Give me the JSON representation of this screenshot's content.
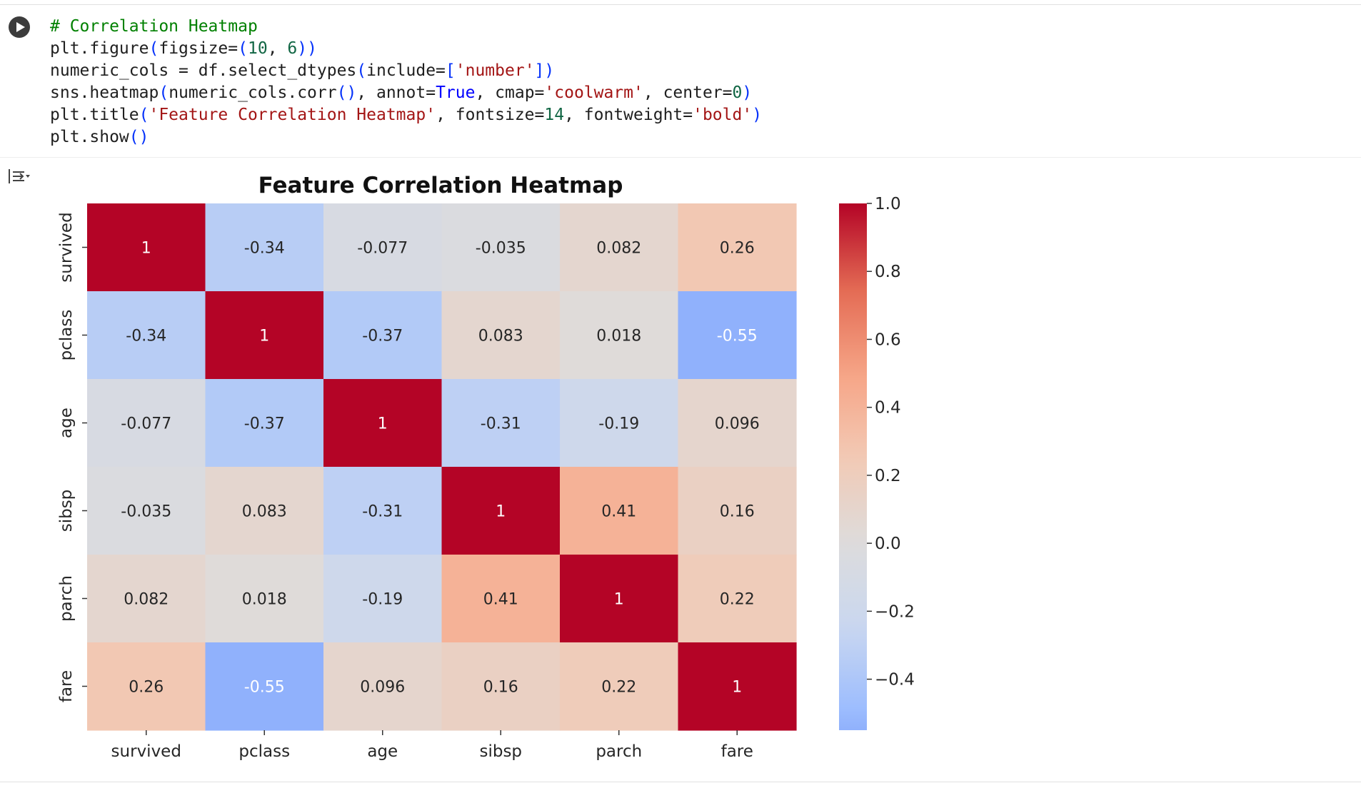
{
  "notebook": {
    "run_button_icon": "play-icon",
    "output_toggle_icon": "collapse-output-icon"
  },
  "code_cell": {
    "lines": [
      [
        {
          "t": "# Correlation Heatmap",
          "k": "comment"
        }
      ],
      [
        {
          "t": "plt.figure",
          "k": "plain"
        },
        {
          "t": "(",
          "k": "paren"
        },
        {
          "t": "figsize=",
          "k": "plain"
        },
        {
          "t": "(",
          "k": "paren"
        },
        {
          "t": "10",
          "k": "num"
        },
        {
          "t": ", ",
          "k": "plain"
        },
        {
          "t": "6",
          "k": "num"
        },
        {
          "t": ")",
          "k": "paren"
        },
        {
          "t": ")",
          "k": "paren"
        }
      ],
      [
        {
          "t": "numeric_cols = df.select_dtypes",
          "k": "plain"
        },
        {
          "t": "(",
          "k": "paren"
        },
        {
          "t": "include=",
          "k": "plain"
        },
        {
          "t": "[",
          "k": "paren"
        },
        {
          "t": "'number'",
          "k": "str"
        },
        {
          "t": "]",
          "k": "paren"
        },
        {
          "t": ")",
          "k": "paren"
        }
      ],
      [
        {
          "t": "sns.heatmap",
          "k": "plain"
        },
        {
          "t": "(",
          "k": "paren"
        },
        {
          "t": "numeric_cols.corr",
          "k": "plain"
        },
        {
          "t": "()",
          "k": "paren"
        },
        {
          "t": ", annot=",
          "k": "plain"
        },
        {
          "t": "True",
          "k": "kw"
        },
        {
          "t": ", cmap=",
          "k": "plain"
        },
        {
          "t": "'coolwarm'",
          "k": "str"
        },
        {
          "t": ", center=",
          "k": "plain"
        },
        {
          "t": "0",
          "k": "num"
        },
        {
          "t": ")",
          "k": "paren"
        }
      ],
      [
        {
          "t": "plt.title",
          "k": "plain"
        },
        {
          "t": "(",
          "k": "paren"
        },
        {
          "t": "'Feature Correlation Heatmap'",
          "k": "str"
        },
        {
          "t": ", fontsize=",
          "k": "plain"
        },
        {
          "t": "14",
          "k": "num"
        },
        {
          "t": ", fontweight=",
          "k": "plain"
        },
        {
          "t": "'bold'",
          "k": "str"
        },
        {
          "t": ")",
          "k": "paren"
        }
      ],
      [
        {
          "t": "plt.show",
          "k": "plain"
        },
        {
          "t": "()",
          "k": "paren"
        }
      ]
    ]
  },
  "syntax_colors": {
    "comment": "#008000",
    "plain": "#1f1f1f",
    "paren": "#0431fa",
    "num": "#116644",
    "str": "#a31515",
    "kw": "#0000ff"
  },
  "chart_data": {
    "type": "heatmap",
    "title": "Feature Correlation Heatmap",
    "xlabel": "",
    "ylabel": "",
    "row_labels": [
      "survived",
      "pclass",
      "age",
      "sibsp",
      "parch",
      "fare"
    ],
    "col_labels": [
      "survived",
      "pclass",
      "age",
      "sibsp",
      "parch",
      "fare"
    ],
    "values": [
      [
        1,
        -0.34,
        -0.077,
        -0.035,
        0.082,
        0.26
      ],
      [
        -0.34,
        1,
        -0.37,
        0.083,
        0.018,
        -0.55
      ],
      [
        -0.077,
        -0.37,
        1,
        -0.31,
        -0.19,
        0.096
      ],
      [
        -0.035,
        0.083,
        -0.31,
        1,
        0.41,
        0.16
      ],
      [
        0.082,
        0.018,
        -0.19,
        0.41,
        1,
        0.22
      ],
      [
        0.26,
        -0.55,
        0.096,
        0.16,
        0.22,
        1
      ]
    ],
    "annotations": [
      [
        "1",
        "-0.34",
        "-0.077",
        "-0.035",
        "0.082",
        "0.26"
      ],
      [
        "-0.34",
        "1",
        "-0.37",
        "0.083",
        "0.018",
        "-0.55"
      ],
      [
        "-0.077",
        "-0.37",
        "1",
        "-0.31",
        "-0.19",
        "0.096"
      ],
      [
        "-0.035",
        "0.083",
        "-0.31",
        "1",
        "0.41",
        "0.16"
      ],
      [
        "0.082",
        "0.018",
        "-0.19",
        "0.41",
        "1",
        "0.22"
      ],
      [
        "0.26",
        "-0.55",
        "0.096",
        "0.16",
        "0.22",
        "1"
      ]
    ],
    "colormap": "coolwarm",
    "center": 0,
    "vmin": -0.55,
    "vmax": 1,
    "colorbar": {
      "ticks": [
        1.0,
        0.8,
        0.6,
        0.4,
        0.2,
        0.0,
        -0.2,
        -0.4
      ],
      "tick_labels": [
        "1.0",
        "0.8",
        "0.6",
        "0.4",
        "0.2",
        "0.0",
        "−0.2",
        "−0.4"
      ],
      "placement": "right"
    },
    "colormap_stops": [
      "#3b4cc0",
      "#6a8bef",
      "#9abbff",
      "#c9d7f0",
      "#dddcdc",
      "#f2cab5",
      "#f6a486",
      "#e36a53",
      "#b40426"
    ]
  }
}
